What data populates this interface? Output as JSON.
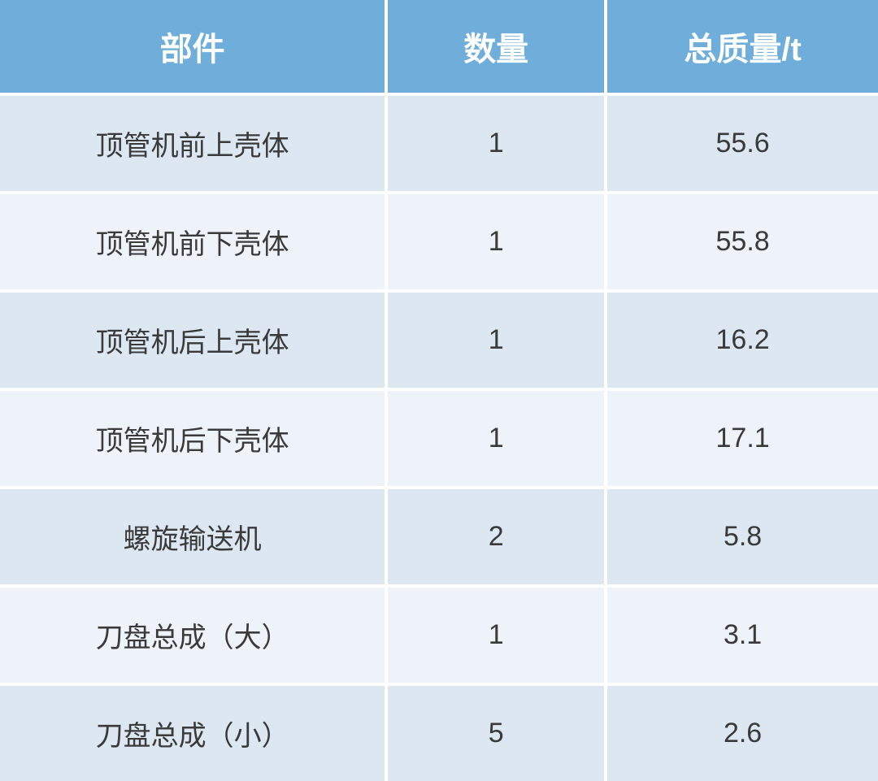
{
  "table": {
    "type": "table",
    "header_background": "#6faedb",
    "header_text_color": "#ffffff",
    "header_fontsize": 40,
    "header_fontweight": "bold",
    "row_odd_background": "#dce7f2",
    "row_even_background": "#eef3f9",
    "cell_text_color": "#3a3a3a",
    "cell_fontsize": 34,
    "border_color": "#ffffff",
    "border_width": 4,
    "column_widths": [
      "44%",
      "25%",
      "31%"
    ],
    "columns": [
      "部件",
      "数量",
      "总质量/t"
    ],
    "rows": [
      [
        "顶管机前上壳体",
        "1",
        "55.6"
      ],
      [
        "顶管机前下壳体",
        "1",
        "55.8"
      ],
      [
        "顶管机后上壳体",
        "1",
        "16.2"
      ],
      [
        "顶管机后下壳体",
        "1",
        "17.1"
      ],
      [
        "螺旋输送机",
        "2",
        "5.8"
      ],
      [
        "刀盘总成（大）",
        "1",
        "3.1"
      ],
      [
        "刀盘总成（小）",
        "5",
        "2.6"
      ]
    ]
  }
}
